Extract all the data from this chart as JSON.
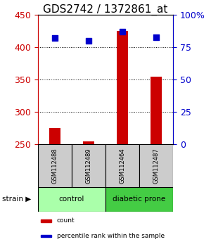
{
  "title": "GDS2742 / 1372861_at",
  "samples": [
    "GSM112488",
    "GSM112489",
    "GSM112464",
    "GSM112487"
  ],
  "counts": [
    275,
    255,
    425,
    355
  ],
  "percentiles": [
    82,
    80,
    87,
    83
  ],
  "ylim_left": [
    250,
    450
  ],
  "ylim_right": [
    0,
    100
  ],
  "yticks_left": [
    250,
    300,
    350,
    400,
    450
  ],
  "yticks_right": [
    0,
    25,
    50,
    75,
    100
  ],
  "ytick_labels_right": [
    "0",
    "25",
    "50",
    "75",
    "100%"
  ],
  "bar_color": "#cc0000",
  "dot_color": "#0000cc",
  "bar_width": 0.35,
  "groups": [
    {
      "label": "control",
      "indices": [
        0,
        1
      ],
      "color": "#aaffaa"
    },
    {
      "label": "diabetic prone",
      "indices": [
        2,
        3
      ],
      "color": "#44cc44"
    }
  ],
  "left_axis_color": "#cc0000",
  "right_axis_color": "#0000cc",
  "grid_color": "#000000",
  "sample_box_color": "#cccccc",
  "title_fontsize": 11,
  "tick_fontsize": 9,
  "legend_fontsize": 6.5,
  "sample_fontsize": 6,
  "group_fontsize": 7.5,
  "legend_count_label": "count",
  "legend_pct_label": "percentile rank within the sample",
  "strain_label": "strain ▶"
}
